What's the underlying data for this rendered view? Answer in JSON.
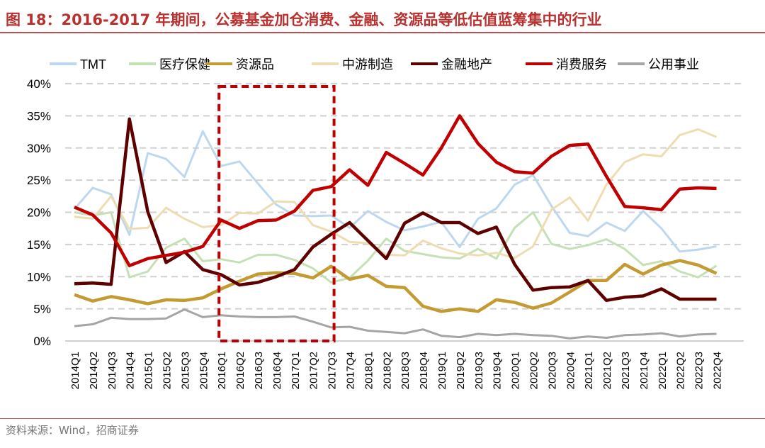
{
  "title": "图 18：2016-2017 年期间，公募基金加仓消费、金融、资源品等低估值蓝筹集中的行业",
  "source": "资料来源：Wind，招商证券",
  "chart_data": {
    "type": "line",
    "ylim": [
      0,
      40
    ],
    "yticks": [
      "0%",
      "5%",
      "10%",
      "15%",
      "20%",
      "25%",
      "30%",
      "35%",
      "40%"
    ],
    "grid": "horizontal dashed",
    "legend": "top",
    "highlight_box": {
      "from": "2016Q1",
      "to": "2017Q3",
      "color": "#c00000"
    },
    "categories": [
      "2014Q1",
      "2014Q2",
      "2014Q3",
      "2014Q4",
      "2015Q1",
      "2015Q2",
      "2015Q3",
      "2015Q4",
      "2016Q1",
      "2016Q2",
      "2016Q3",
      "2016Q4",
      "2017Q1",
      "2017Q2",
      "2017Q3",
      "2017Q4",
      "2018Q1",
      "2018Q2",
      "2018Q3",
      "2018Q4",
      "2019Q1",
      "2019Q2",
      "2019Q3",
      "2019Q4",
      "2020Q1",
      "2020Q2",
      "2020Q3",
      "2020Q4",
      "2021Q1",
      "2021Q2",
      "2021Q3",
      "2021Q4",
      "2022Q1",
      "2022Q2",
      "2022Q3",
      "2022Q4"
    ],
    "series": [
      {
        "name": "TMT",
        "color": "#bdd7ee",
        "values": [
          20.5,
          23.8,
          22.8,
          16.5,
          29.2,
          28.3,
          25.5,
          32.6,
          27.2,
          27.9,
          24.5,
          21.2,
          19.5,
          19.4,
          19.5,
          17.6,
          20.2,
          18.5,
          17.2,
          17.8,
          18.5,
          14.6,
          19.0,
          20.6,
          24.3,
          25.8,
          21.0,
          16.8,
          16.3,
          18.4,
          17.1,
          20.2,
          17.5,
          13.9,
          14.2,
          14.7
        ]
      },
      {
        "name": "医疗保健",
        "color": "#c5e0b4",
        "values": [
          20.0,
          19.5,
          20.0,
          9.9,
          10.8,
          14.5,
          15.9,
          12.4,
          12.7,
          12.2,
          13.4,
          13.4,
          12.6,
          11.3,
          9.1,
          9.8,
          12.5,
          15.9,
          14.0,
          13.5,
          13.0,
          12.8,
          14.3,
          12.8,
          17.6,
          20.0,
          15.1,
          14.3,
          14.9,
          15.8,
          14.3,
          11.8,
          12.4,
          10.8,
          9.9,
          11.7
        ]
      },
      {
        "name": "资源品",
        "color": "#c49a32",
        "values": [
          7.2,
          6.2,
          6.9,
          6.4,
          5.8,
          6.4,
          6.3,
          6.7,
          8.1,
          9.3,
          10.4,
          10.6,
          10.5,
          9.8,
          11.6,
          9.6,
          10.2,
          8.5,
          8.3,
          5.4,
          4.6,
          5.0,
          4.6,
          6.4,
          6.0,
          5.1,
          5.9,
          7.6,
          9.4,
          9.4,
          11.9,
          10.4,
          11.8,
          12.5,
          11.8,
          10.5
        ]
      },
      {
        "name": "中游制造",
        "color": "#eedcb3",
        "values": [
          19.3,
          19.0,
          22.5,
          17.4,
          17.6,
          20.7,
          19.0,
          17.7,
          18.0,
          19.9,
          19.8,
          21.7,
          21.6,
          18.0,
          17.0,
          15.4,
          15.2,
          13.4,
          13.3,
          15.6,
          14.4,
          13.6,
          13.3,
          13.7,
          12.9,
          14.7,
          20.4,
          22.3,
          18.7,
          24.3,
          27.8,
          29.0,
          28.7,
          32.0,
          32.9,
          31.7
        ]
      },
      {
        "name": "金融地产",
        "color": "#5e0000",
        "values": [
          8.9,
          9.0,
          8.8,
          34.5,
          20.1,
          12.2,
          13.9,
          11.1,
          10.3,
          8.7,
          9.1,
          10.0,
          11.1,
          14.6,
          16.6,
          18.4,
          15.6,
          12.8,
          18.3,
          19.9,
          18.4,
          18.4,
          16.7,
          17.7,
          11.9,
          7.9,
          8.3,
          8.4,
          9.4,
          6.3,
          6.8,
          7.0,
          8.1,
          6.5,
          6.5,
          6.5
        ]
      },
      {
        "name": "消费服务",
        "color": "#c00000",
        "values": [
          20.8,
          19.6,
          16.8,
          11.7,
          12.8,
          13.3,
          13.8,
          14.7,
          18.8,
          17.5,
          18.7,
          18.8,
          20.2,
          23.4,
          24.0,
          26.6,
          24.2,
          29.3,
          27.6,
          25.8,
          30.0,
          35.0,
          30.7,
          27.8,
          26.3,
          26.1,
          28.7,
          30.4,
          30.6,
          25.6,
          20.9,
          20.7,
          20.4,
          23.6,
          23.8,
          23.7
        ]
      },
      {
        "name": "公用事业",
        "color": "#a5a5a5",
        "values": [
          2.3,
          2.6,
          3.6,
          3.4,
          3.4,
          3.5,
          4.9,
          3.7,
          4.0,
          3.8,
          3.7,
          3.7,
          3.8,
          3.0,
          2.1,
          2.2,
          1.6,
          1.4,
          1.2,
          1.8,
          0.8,
          0.6,
          1.1,
          0.9,
          1.1,
          0.9,
          0.8,
          0.4,
          0.7,
          0.5,
          0.9,
          1.0,
          1.2,
          0.7,
          1.0,
          1.1
        ]
      }
    ]
  }
}
